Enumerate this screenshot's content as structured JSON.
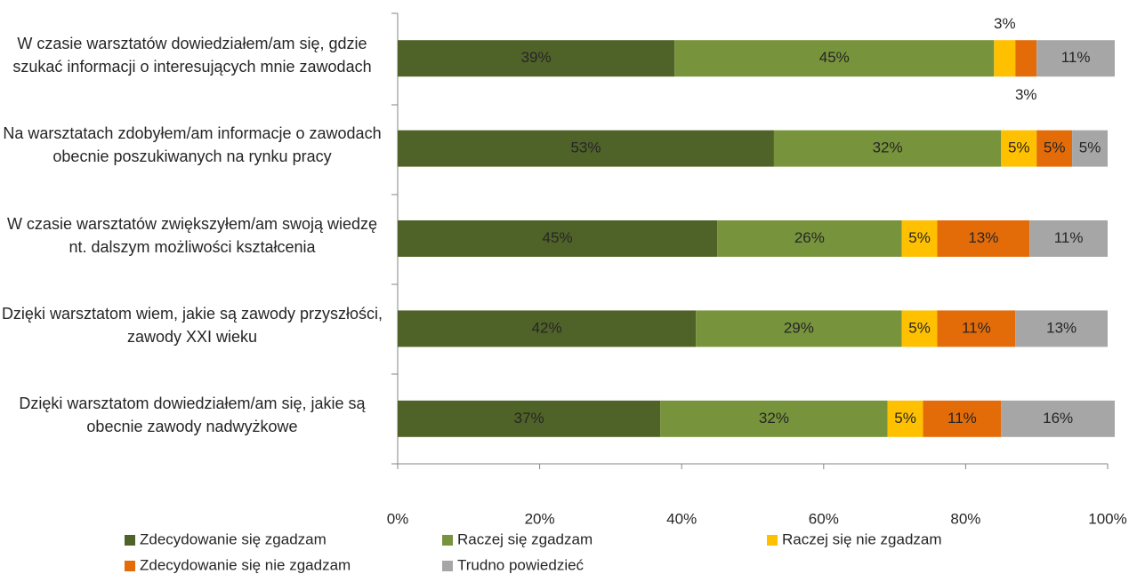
{
  "chart_data": {
    "type": "stacked_barh",
    "categories": [
      "W czasie warsztatów dowiedziałem/am się, gdzie szukać informacji o interesujących mnie zawodach",
      "Na warsztatach zdobyłem/am informacje o zawodach obecnie poszukiwanych na rynku pracy",
      "W czasie warsztatów zwiększyłem/am swoją wiedzę nt. dalszym możliwości kształcenia",
      "Dzięki warsztatom wiem, jakie są zawody przyszłości, zawody XXI wieku",
      "Dzięki warsztatom dowiedziałem/am się, jakie są obecnie zawody nadwyżkowe"
    ],
    "series": [
      {
        "name": "Zdecydowanie się zgadzam",
        "color": "#4f6228",
        "values": [
          39,
          53,
          45,
          42,
          37
        ],
        "value_labels": [
          "39%",
          "53%",
          "45%",
          "42%",
          "37%"
        ]
      },
      {
        "name": "Raczej się zgadzam",
        "color": "#77933c",
        "values": [
          45,
          32,
          26,
          29,
          32
        ],
        "value_labels": [
          "45%",
          "32%",
          "26%",
          "29%",
          "32%"
        ]
      },
      {
        "name": "Raczej się nie zgadzam",
        "color": "#ffc000",
        "values": [
          3,
          5,
          5,
          5,
          5
        ],
        "value_labels": [
          "3%",
          "5%",
          "5%",
          "5%",
          "5%"
        ]
      },
      {
        "name": "Zdecydowanie się nie zgadzam",
        "color": "#e36c09",
        "values": [
          3,
          5,
          13,
          11,
          11
        ],
        "value_labels": [
          "3%",
          "5%",
          "13%",
          "11%",
          "11%"
        ]
      },
      {
        "name": "Trudno powiedzieć",
        "color": "#a6a6a6",
        "values": [
          11,
          5,
          11,
          13,
          16
        ],
        "value_labels": [
          "11%",
          "5%",
          "11%",
          "13%",
          "16%"
        ]
      }
    ],
    "xlim": [
      0,
      100
    ],
    "xticks": [
      {
        "value": 0,
        "label": "0%"
      },
      {
        "value": 20,
        "label": "20%"
      },
      {
        "value": 40,
        "label": "40%"
      },
      {
        "value": 60,
        "label": "60%"
      },
      {
        "value": 80,
        "label": "80%"
      },
      {
        "value": 100,
        "label": "100%"
      }
    ]
  }
}
